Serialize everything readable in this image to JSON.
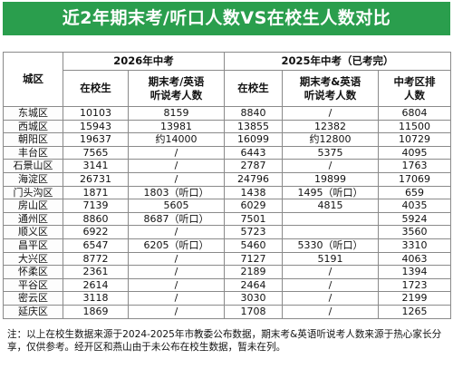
{
  "title": "近2年期末考/听口人数VS在校生人数对比",
  "header": {
    "district_col": "城区",
    "group_2026": "2026年中考",
    "group_2025": "2025年中考（已考完）",
    "col_students": "在校生",
    "col_exam_line1": "期末考/英语",
    "col_exam_line2": "听说考人数",
    "col_exam_2025_line1": "期末考&英语",
    "col_exam_2025_line2": "听说考人数",
    "col_rank_line1": "中考区排",
    "col_rank_line2": "人数"
  },
  "rows": [
    {
      "district": "东城区",
      "s2026": "10103",
      "e2026": "8159",
      "s2025": "8840",
      "e2025": "/",
      "r2025": "6804"
    },
    {
      "district": "西城区",
      "s2026": "15943",
      "e2026": "13981",
      "s2025": "13855",
      "e2025": "12382",
      "r2025": "11500"
    },
    {
      "district": "朝阳区",
      "s2026": "19637",
      "e2026": "约14000",
      "s2025": "16099",
      "e2025": "约12800",
      "r2025": "10729"
    },
    {
      "district": "丰台区",
      "s2026": "7565",
      "e2026": "/",
      "s2025": "6443",
      "e2025": "5375",
      "r2025": "4095"
    },
    {
      "district": "石景山区",
      "s2026": "3141",
      "e2026": "/",
      "s2025": "2787",
      "e2025": "/",
      "r2025": "1763"
    },
    {
      "district": "海淀区",
      "s2026": "26731",
      "e2026": "/",
      "s2025": "24796",
      "e2025": "19899",
      "r2025": "17069"
    },
    {
      "district": "门头沟区",
      "s2026": "1871",
      "e2026": "1803（听口）",
      "s2025": "1438",
      "e2025": "1495（听口）",
      "r2025": "659"
    },
    {
      "district": "房山区",
      "s2026": "7139",
      "e2026": "5605",
      "s2025": "6029",
      "e2025": "4815",
      "r2025": "4035"
    },
    {
      "district": "通州区",
      "s2026": "8860",
      "e2026": "8687（听口）",
      "s2025": "7501",
      "e2025": "",
      "r2025": "5924"
    },
    {
      "district": "顺义区",
      "s2026": "6922",
      "e2026": "/",
      "s2025": "5723",
      "e2025": "",
      "r2025": "3560"
    },
    {
      "district": "昌平区",
      "s2026": "6547",
      "e2026": "6205（听口）",
      "s2025": "5460",
      "e2025": "5330（听口）",
      "r2025": "3310"
    },
    {
      "district": "大兴区",
      "s2026": "8772",
      "e2026": "/",
      "s2025": "7127",
      "e2025": "5191",
      "r2025": "4063"
    },
    {
      "district": "怀柔区",
      "s2026": "2361",
      "e2026": "/",
      "s2025": "2189",
      "e2025": "/",
      "r2025": "1394"
    },
    {
      "district": "平谷区",
      "s2026": "2614",
      "e2026": "/",
      "s2025": "2464",
      "e2025": "/",
      "r2025": "1723"
    },
    {
      "district": "密云区",
      "s2026": "3118",
      "e2026": "/",
      "s2025": "3030",
      "e2025": "/",
      "r2025": "2199"
    },
    {
      "district": "延庆区",
      "s2026": "1869",
      "e2026": "/",
      "s2025": "1708",
      "e2025": "/",
      "r2025": "1265"
    }
  ],
  "note": "注：以上在校生数据来源于2024-2025年市教委公布数据，期末考&英语听说考人数来源于热心家长分享，仅供参考。经开区和燕山由于未公布在校生数据，暂未在列。",
  "colors": {
    "title_bg": "#2a9e4d",
    "title_text": "#ffffff",
    "border": "#8a8a8a"
  }
}
